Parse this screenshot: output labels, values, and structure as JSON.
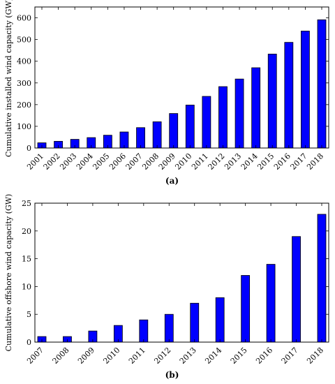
{
  "chart_data": [
    {
      "type": "bar",
      "caption": "(a)",
      "ylabel": "Cumulative installed wind capacity (GW)",
      "xlabel": "",
      "ylim": [
        0,
        650
      ],
      "yticks": [
        0,
        100,
        200,
        300,
        400,
        500,
        600
      ],
      "grid": false,
      "bar_color": "#0000ff",
      "categories": [
        "2001",
        "2002",
        "2003",
        "2004",
        "2005",
        "2006",
        "2007",
        "2008",
        "2009",
        "2010",
        "2011",
        "2012",
        "2013",
        "2014",
        "2015",
        "2016",
        "2017",
        "2018"
      ],
      "values": [
        24,
        31,
        40,
        48,
        59,
        74,
        94,
        121,
        159,
        198,
        238,
        283,
        318,
        370,
        433,
        487,
        539,
        591
      ]
    },
    {
      "type": "bar",
      "caption": "(b)",
      "ylabel": "Cumulative offshore wind capacity (GW)",
      "xlabel": "",
      "ylim": [
        0,
        25
      ],
      "yticks": [
        0,
        5,
        10,
        15,
        20,
        25
      ],
      "grid": false,
      "bar_color": "#0000ff",
      "categories": [
        "2007",
        "2008",
        "2009",
        "2010",
        "2011",
        "2012",
        "2013",
        "2014",
        "2015",
        "2016",
        "2017",
        "2018"
      ],
      "values": [
        1,
        1,
        2,
        3,
        4,
        5,
        7,
        8,
        12,
        14,
        19,
        23
      ]
    }
  ]
}
